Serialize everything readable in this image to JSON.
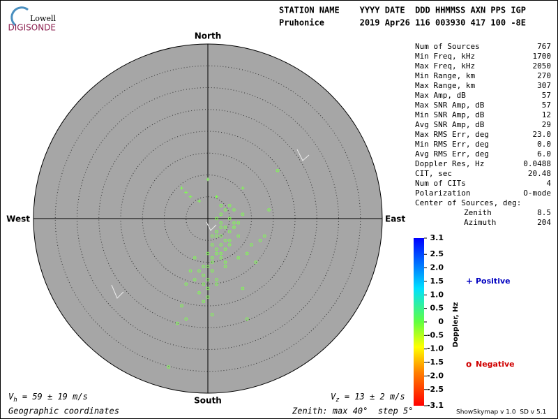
{
  "chart_data": {
    "type": "skymap",
    "logo": {
      "top": "Lowell",
      "bottom": "DIGISONDE"
    },
    "header": [
      "STATION NAME    YYYY DATE  DDD HHMMSS AXN PPS IGP",
      "Pruhonice       2019 Apr26 116 003930 417 100 -8E"
    ],
    "directions": {
      "north": "North",
      "south": "South",
      "east": "East",
      "west": "West"
    },
    "stats": [
      [
        "Num of Sources",
        "767"
      ],
      [
        "Min Freq, kHz",
        "1700"
      ],
      [
        "Max Freq, kHz",
        "2050"
      ],
      [
        "Min Range, km",
        "270"
      ],
      [
        "Max Range, km",
        "307"
      ],
      [
        "Max Amp, dB",
        "57"
      ],
      [
        "Max SNR Amp, dB",
        "57"
      ],
      [
        "Min SNR Amp, dB",
        "12"
      ],
      [
        "Avg SNR Amp, dB",
        "29"
      ],
      [
        "Max RMS Err, deg",
        "23.0"
      ],
      [
        "Min RMS Err, deg",
        "0.0"
      ],
      [
        "Avg RMS Err, deg",
        "6.0"
      ],
      [
        "Doppler Res, Hz",
        "0.0488"
      ],
      [
        "CIT, sec",
        "20.48"
      ],
      [
        "Num of CITs",
        "4"
      ],
      [
        "Polarization",
        "O-mode"
      ]
    ],
    "center_title": "Center of Sources, deg:",
    "center": [
      [
        "Zenith",
        "8.5"
      ],
      [
        "Azimuth",
        "204"
      ]
    ],
    "xlim": [
      -40,
      40
    ],
    "ylim": [
      -40,
      40
    ],
    "rlim": [
      0,
      40
    ],
    "rticks": [
      5,
      10,
      15,
      20,
      25,
      30,
      35,
      40
    ],
    "series": [
      {
        "name": "Negative",
        "marker": "o",
        "color": "#7dff4f",
        "legend_color": "#d00000",
        "x": [
          2,
          3,
          4,
          5,
          6,
          3,
          2,
          1,
          0,
          1,
          2,
          3,
          4,
          5,
          6,
          7,
          4,
          3,
          2,
          1,
          0,
          -1,
          0,
          1,
          2,
          3,
          5,
          6,
          7,
          8,
          4,
          3,
          1,
          0,
          -1,
          -2,
          -1,
          0,
          2,
          4,
          5,
          3,
          2,
          1,
          -3,
          -2,
          -4,
          -5,
          10,
          12,
          14,
          16,
          13,
          11,
          -9,
          -5,
          -1,
          1,
          8,
          9,
          7,
          6,
          -3,
          -6,
          3,
          2,
          4,
          5,
          9,
          -7
        ],
        "y": [
          0,
          1,
          2,
          3,
          2,
          -2,
          -4,
          -6,
          -8,
          -10,
          -3,
          -1,
          -2,
          0,
          -1,
          -1,
          -5,
          -6,
          -7,
          -9,
          -11,
          -13,
          -14,
          -12,
          -8,
          -4,
          -3,
          -2,
          -4,
          1,
          -7,
          -9,
          -12,
          -16,
          -15,
          -12,
          -11,
          -18,
          -15,
          -10,
          -6,
          -8,
          -3,
          -4,
          -14,
          -17,
          -12,
          -15,
          -6,
          -5,
          2,
          11,
          -4,
          -10,
          -34,
          -23,
          -19,
          -22,
          -16,
          -23,
          -9,
          -2,
          -9,
          -20,
          3,
          -14,
          -11,
          -5,
          -8,
          -24
        ]
      },
      {
        "name": "Positive",
        "marker": "+",
        "color": "#7dff4f",
        "legend_color": "#0000c0",
        "x": [
          -5,
          -2,
          0,
          -4,
          2,
          8,
          -6
        ],
        "y": [
          6,
          4,
          9,
          5,
          5,
          7,
          7
        ]
      }
    ],
    "colorbar": {
      "label": "Doppler, Hz",
      "lim": [
        -3.1,
        3.1
      ],
      "ticks": [
        3.1,
        2.5,
        {
          "value": 2,
          "label": "2.0"
        },
        1.5,
        {
          "value": 1,
          "label": "1.0"
        },
        0.5,
        0,
        -0.5,
        {
          "value": -1,
          "label": "-1.0"
        },
        -1.5,
        {
          "value": -2,
          "label": "-2.0"
        },
        -2.5,
        -3.1
      ]
    },
    "vh": {
      "symbol": "V",
      "sub": "h",
      "text": " = 59 ± 19 m/s"
    },
    "vz": {
      "symbol": "V",
      "sub": "z",
      "text": " = 13 ± 2 m/s"
    },
    "footer_left": "Geographic coordinates",
    "footer_zenith": "Zenith: max 40°  step 5°",
    "footer_right": "ShowSkymap v 1.0  SD v 5.1"
  }
}
